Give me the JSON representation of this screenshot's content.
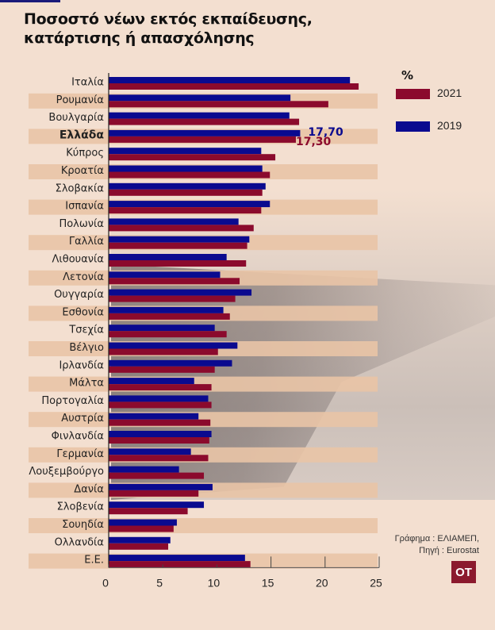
{
  "title_lines": [
    "Ποσοστό νέων εκτός εκπαίδευσης,",
    "κατάρτισης ή απασχόλησης"
  ],
  "legend": {
    "unit": "%",
    "items": [
      {
        "label": "2021",
        "color": "#8b0a2d"
      },
      {
        "label": "2019",
        "color": "#0a0a8f"
      }
    ]
  },
  "source": {
    "line1": "Γράφημα : ΕΛΙΑΜΕΠ,",
    "line2": "Πηγή : Eurostat"
  },
  "logo": "OT",
  "colors": {
    "background": "#f3dfd0",
    "band": "#e9c4a6",
    "series_2019": "#0a0a8f",
    "series_2021": "#8b0a2d",
    "accent_line": "#1a1a7a"
  },
  "chart_data": {
    "type": "bar",
    "orientation": "horizontal",
    "title": "Ποσοστό νέων εκτός εκπαίδευσης, κατάρτισης ή απασχόλησης",
    "xlabel": "",
    "ylabel": "",
    "unit": "%",
    "xlim": [
      0,
      25
    ],
    "xticks": [
      0,
      5,
      10,
      15,
      20,
      25
    ],
    "legend_position": "top-right",
    "highlight_category": "Ελλάδα",
    "categories": [
      "Ιταλία",
      "Ρουμανία",
      "Βουλγαρία",
      "Ελλάδα",
      "Κύπρος",
      "Κροατία",
      "Σλοβακία",
      "Ισπανία",
      "Πολωνία",
      "Γαλλία",
      "Λιθουανία",
      "Λετονία",
      "Ουγγαρία",
      "Εσθονία",
      "Τσεχία",
      "Βέλγιο",
      "Ιρλανδία",
      "Μάλτα",
      "Πορτογαλία",
      "Αυστρία",
      "Φινλανδία",
      "Γερμανία",
      "Λουξεμβούργο",
      "Δανία",
      "Σλοβενία",
      "Σουηδία",
      "Ολλανδία",
      "Ε.Ε."
    ],
    "series": [
      {
        "name": "2019",
        "values": [
          22.3,
          16.8,
          16.7,
          17.7,
          14.1,
          14.2,
          14.5,
          14.9,
          12.0,
          13.0,
          10.9,
          10.3,
          13.2,
          10.6,
          9.8,
          11.9,
          11.4,
          7.9,
          9.2,
          8.3,
          9.5,
          7.6,
          6.5,
          9.6,
          8.8,
          6.3,
          5.7,
          12.6
        ]
      },
      {
        "name": "2021",
        "values": [
          23.1,
          20.3,
          17.6,
          17.3,
          15.4,
          14.9,
          14.2,
          14.1,
          13.4,
          12.8,
          12.7,
          12.1,
          11.7,
          11.2,
          10.9,
          10.1,
          9.8,
          9.5,
          9.5,
          9.4,
          9.3,
          9.2,
          8.8,
          8.3,
          7.3,
          6.0,
          5.5,
          13.1
        ]
      }
    ],
    "annotations": [
      {
        "category": "Ελλάδα",
        "series": "2019",
        "text": "17,70"
      },
      {
        "category": "Ελλάδα",
        "series": "2021",
        "text": "17,30"
      }
    ]
  }
}
